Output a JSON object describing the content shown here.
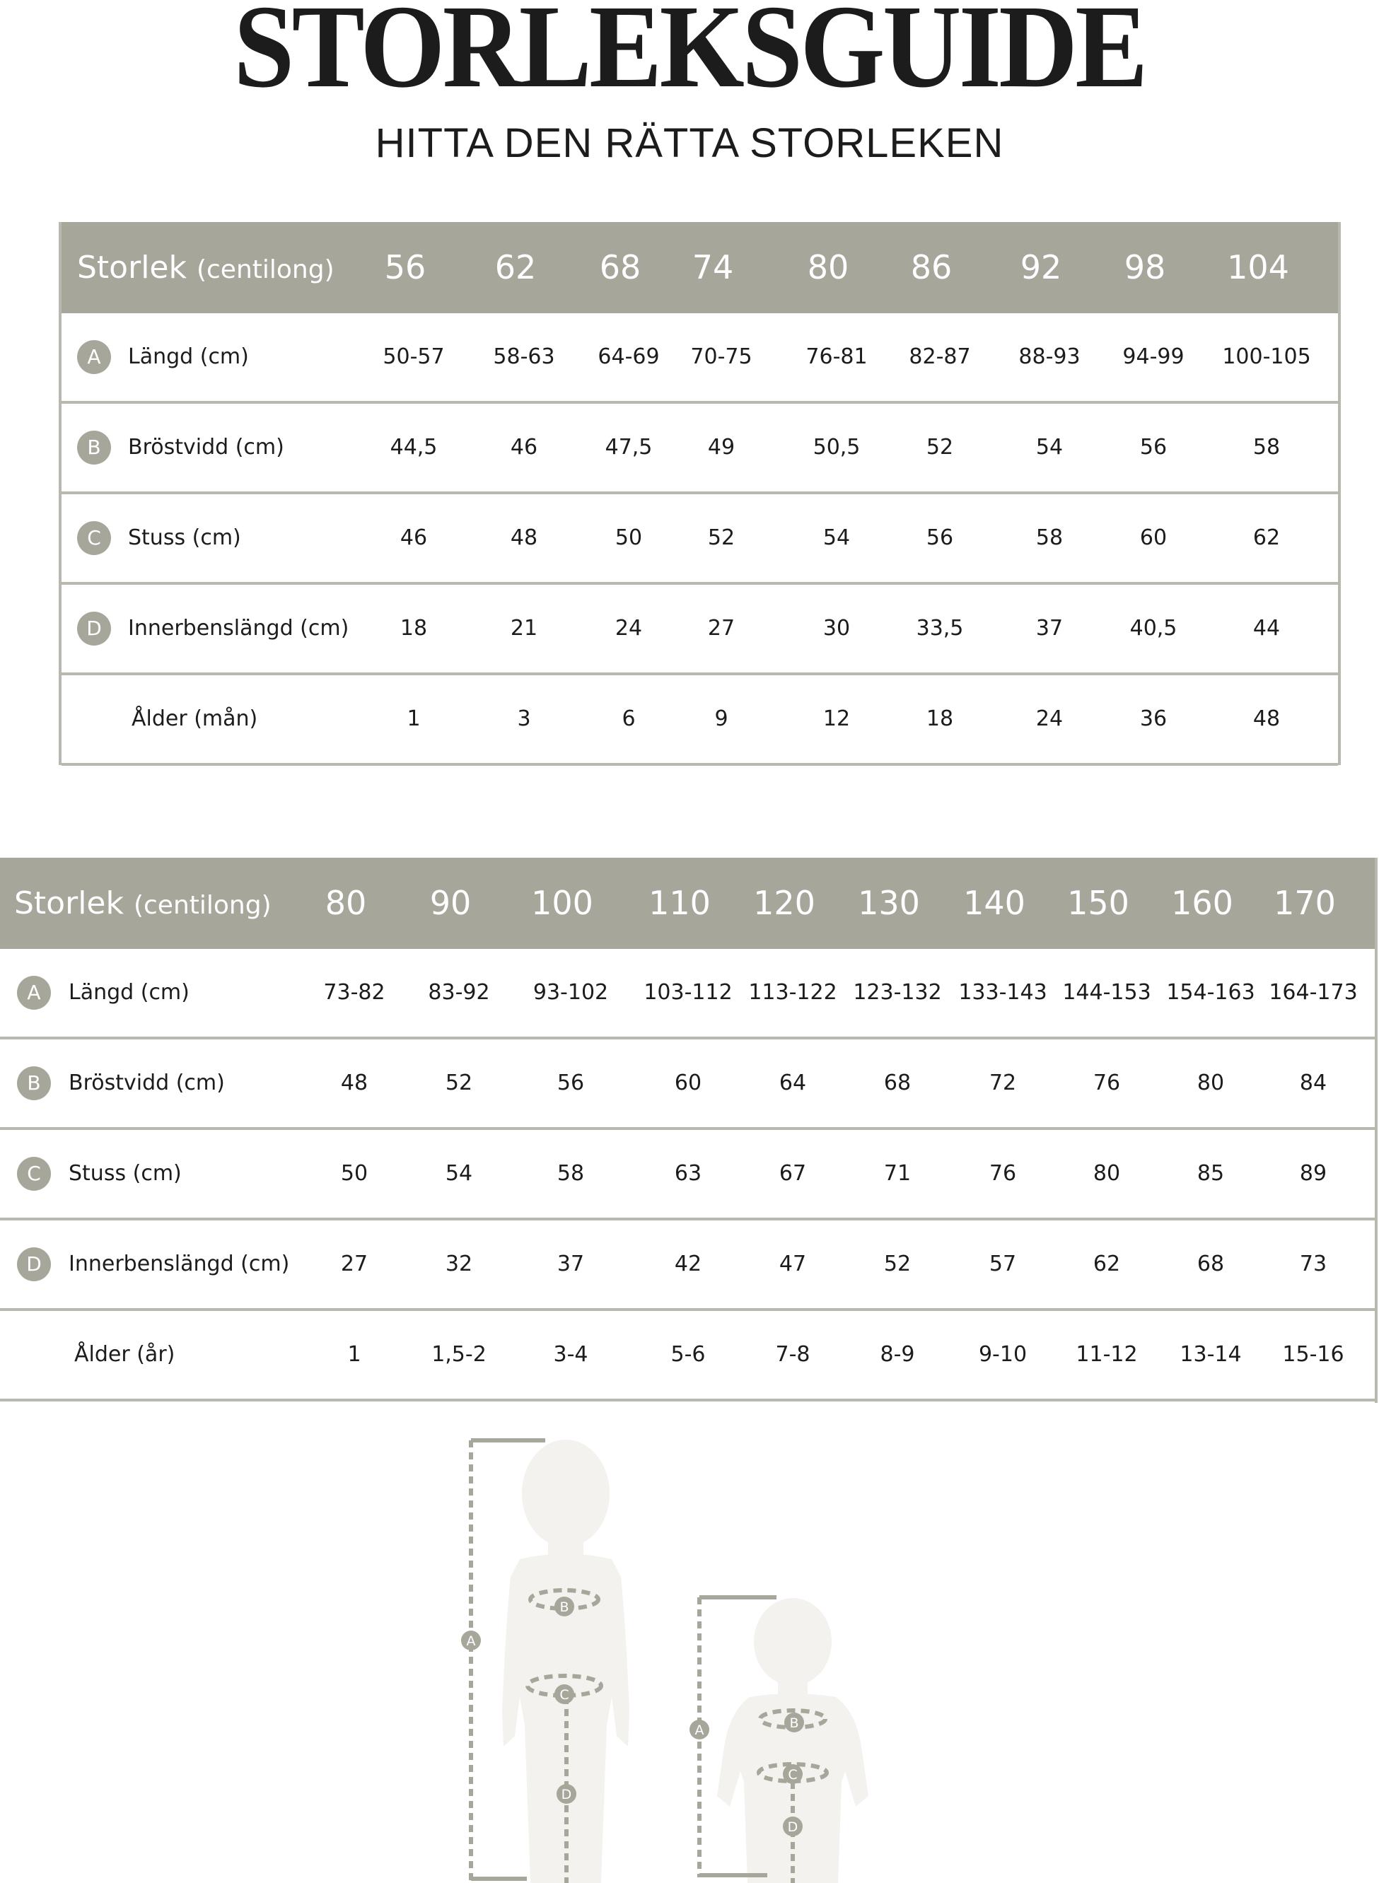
{
  "title": "STORLEKSGUIDE",
  "subtitle": "HITTA DEN RÄTTA STORLEKEN",
  "colors": {
    "header_bg": "#a6a69b",
    "border": "#b8b8ae",
    "silhouette": "#f3f2ee",
    "measure": "#a6a69b"
  },
  "tables": [
    {
      "header_label": "Storlek",
      "header_sublabel": "(centilong)",
      "sizes": [
        "56",
        "62",
        "68",
        "74",
        "80",
        "86",
        "92",
        "98",
        "104"
      ],
      "rows": [
        {
          "badge": "A",
          "label": "Längd (cm)",
          "values": [
            "50-57",
            "58-63",
            "64-69",
            "70-75",
            "76-81",
            "82-87",
            "88-93",
            "94-99",
            "100-105"
          ]
        },
        {
          "badge": "B",
          "label": "Bröstvidd (cm)",
          "values": [
            "44,5",
            "46",
            "47,5",
            "49",
            "50,5",
            "52",
            "54",
            "56",
            "58"
          ]
        },
        {
          "badge": "C",
          "label": "Stuss (cm)",
          "values": [
            "46",
            "48",
            "50",
            "52",
            "54",
            "56",
            "58",
            "60",
            "62"
          ]
        },
        {
          "badge": "D",
          "label": "Innerbenslängd (cm)",
          "values": [
            "18",
            "21",
            "24",
            "27",
            "30",
            "33,5",
            "37",
            "40,5",
            "44"
          ]
        },
        {
          "badge": "",
          "label": "Ålder (mån)",
          "values": [
            "1",
            "3",
            "6",
            "9",
            "12",
            "18",
            "24",
            "36",
            "48"
          ]
        }
      ]
    },
    {
      "header_label": "Storlek",
      "header_sublabel": "(centilong)",
      "sizes": [
        "80",
        "90",
        "100",
        "110",
        "120",
        "130",
        "140",
        "150",
        "160",
        "170"
      ],
      "rows": [
        {
          "badge": "A",
          "label": "Längd (cm)",
          "values": [
            "73-82",
            "83-92",
            "93-102",
            "103-112",
            "113-122",
            "123-132",
            "133-143",
            "144-153",
            "154-163",
            "164-173"
          ]
        },
        {
          "badge": "B",
          "label": "Bröstvidd (cm)",
          "values": [
            "48",
            "52",
            "56",
            "60",
            "64",
            "68",
            "72",
            "76",
            "80",
            "84"
          ]
        },
        {
          "badge": "C",
          "label": "Stuss (cm)",
          "values": [
            "50",
            "54",
            "58",
            "63",
            "67",
            "71",
            "76",
            "80",
            "85",
            "89"
          ]
        },
        {
          "badge": "D",
          "label": "Innerbenslängd (cm)",
          "values": [
            "27",
            "32",
            "37",
            "42",
            "47",
            "52",
            "57",
            "62",
            "68",
            "73"
          ]
        },
        {
          "badge": "",
          "label": "Ålder (år)",
          "values": [
            "1",
            "1,5-2",
            "3-4",
            "5-6",
            "7-8",
            "8-9",
            "9-10",
            "11-12",
            "13-14",
            "15-16"
          ]
        }
      ]
    }
  ],
  "illustration": {
    "child_badges": [
      "A",
      "B",
      "C",
      "D"
    ],
    "baby_badges": [
      "A",
      "B",
      "C",
      "D"
    ]
  }
}
